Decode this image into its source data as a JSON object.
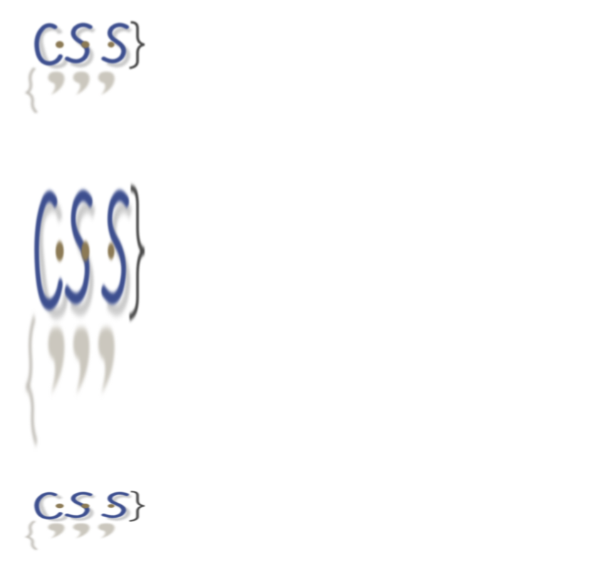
{
  "logos": [
    {
      "text": "CSS",
      "variant": "normal"
    },
    {
      "text": "CSS",
      "variant": "stretched-tall"
    },
    {
      "text": "CSS",
      "variant": "squashed-short"
    }
  ],
  "colors": {
    "letter_blue": "#3d4f8f",
    "dot_gold": "#8c7a55",
    "brace_dark": "#4a4a4a",
    "reflection_gray": "#c8c5bd"
  }
}
